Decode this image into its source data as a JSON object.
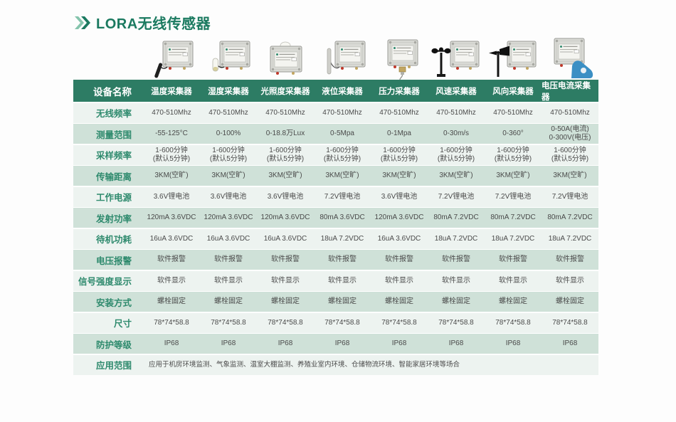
{
  "header": {
    "title": "LORA无线传感器",
    "chevron_icon": "double-chevron-right",
    "title_color": "#1b7a60"
  },
  "colors": {
    "header_bg": "#2d7c64",
    "row_light": "#edf3f0",
    "row_dark": "#cfe1d8",
    "label_green": "#2e8a6d",
    "title_green": "#1b7a60",
    "value_gray": "#4a4a4a",
    "chevron_light": "#85c4ac",
    "chevron_dark": "#1b7a60"
  },
  "table": {
    "columns": [
      "设备名称",
      "温度采集器",
      "湿度采集器",
      "光照度采集器",
      "液位采集器",
      "压力采集器",
      "风速采集器",
      "风向采集器",
      "电压电流采集器"
    ],
    "products": [
      {
        "label": "温度采集器",
        "type": "temperature",
        "icon": "temperature-collector-image"
      },
      {
        "label": "湿度采集器",
        "type": "humidity",
        "icon": "humidity-collector-image"
      },
      {
        "label": "光照度采集器",
        "type": "light",
        "icon": "light-collector-image"
      },
      {
        "label": "液位采集器",
        "type": "liquid",
        "icon": "liquid-level-collector-image"
      },
      {
        "label": "压力采集器",
        "type": "pressure",
        "icon": "pressure-collector-image"
      },
      {
        "label": "风速采集器",
        "type": "wind_speed",
        "icon": "wind-speed-collector-image"
      },
      {
        "label": "风向采集器",
        "type": "wind_direction",
        "icon": "wind-direction-collector-image"
      },
      {
        "label": "电压电流采集器",
        "type": "voltage",
        "icon": "voltage-current-collector-image"
      }
    ],
    "rows": [
      {
        "label": "无线频率",
        "values": [
          "470-510Mhz",
          "470-510Mhz",
          "470-510Mhz",
          "470-510Mhz",
          "470-510Mhz",
          "470-510Mhz",
          "470-510Mhz",
          "470-510Mhz"
        ]
      },
      {
        "label": "测量范围",
        "values": [
          "-55-125°C",
          "0-100%",
          "0-18.8万Lux",
          "0-5Mpa",
          "0-1Mpa",
          "0-30m/s",
          "0-360°",
          "0-50A(电流)\n0-300V(电压)"
        ]
      },
      {
        "label": "采样频率",
        "values": [
          "1-600分钟\n(默认5分钟)",
          "1-600分钟\n(默认5分钟)",
          "1-600分钟\n(默认5分钟)",
          "1-600分钟\n(默认5分钟)",
          "1-600分钟\n(默认5分钟)",
          "1-600分钟\n(默认5分钟)",
          "1-600分钟\n(默认5分钟)",
          "1-600分钟\n(默认5分钟)"
        ]
      },
      {
        "label": "传输距离",
        "values": [
          "3KM(空旷)",
          "3KM(空旷)",
          "3KM(空旷)",
          "3KM(空旷)",
          "3KM(空旷)",
          "3KM(空旷)",
          "3KM(空旷)",
          "3KM(空旷)"
        ]
      },
      {
        "label": "工作电源",
        "values": [
          "3.6V锂电池",
          "3.6V锂电池",
          "3.6V锂电池",
          "7.2V锂电池",
          "3.6V锂电池",
          "7.2V锂电池",
          "7.2V锂电池",
          "7.2V锂电池"
        ]
      },
      {
        "label": "发射功率",
        "values": [
          "120mA 3.6VDC",
          "120mA 3.6VDC",
          "120mA 3.6VDC",
          "80mA 3.6VDC",
          "120mA 3.6VDC",
          "80mA 7.2VDC",
          "80mA 7.2VDC",
          "80mA 7.2VDC"
        ]
      },
      {
        "label": "待机功耗",
        "values": [
          "16uA 3.6VDC",
          "16uA 3.6VDC",
          "16uA 3.6VDC",
          "18uA 7.2VDC",
          "16uA 3.6VDC",
          "18uA 7.2VDC",
          "18uA 7.2VDC",
          "18uA 7.2VDC"
        ]
      },
      {
        "label": "电压报警",
        "values": [
          "软件报警",
          "软件报警",
          "软件报警",
          "软件报警",
          "软件报警",
          "软件报警",
          "软件报警",
          "软件报警"
        ]
      },
      {
        "label": "信号强度显示",
        "values": [
          "软件显示",
          "软件显示",
          "软件显示",
          "软件显示",
          "软件显示",
          "软件显示",
          "软件显示",
          "软件显示"
        ]
      },
      {
        "label": "安装方式",
        "values": [
          "螺栓固定",
          "螺栓固定",
          "螺栓固定",
          "螺栓固定",
          "螺栓固定",
          "螺栓固定",
          "螺栓固定",
          "螺栓固定"
        ]
      },
      {
        "label": "尺寸",
        "values": [
          "78*74*58.8",
          "78*74*58.8",
          "78*74*58.8",
          "78*74*58.8",
          "78*74*58.8",
          "78*74*58.8",
          "78*74*58.8",
          "78*74*58.8"
        ]
      },
      {
        "label": "防护等级",
        "values": [
          "IP68",
          "IP68",
          "IP68",
          "IP68",
          "IP68",
          "IP68",
          "IP68",
          "IP68"
        ]
      },
      {
        "label": "应用范围",
        "span": true,
        "values": [
          "应用于机房环境监测、气象监测、温室大棚监测、养殖业室内环境、仓储物流环境、智能家居环境等场合"
        ]
      }
    ]
  }
}
